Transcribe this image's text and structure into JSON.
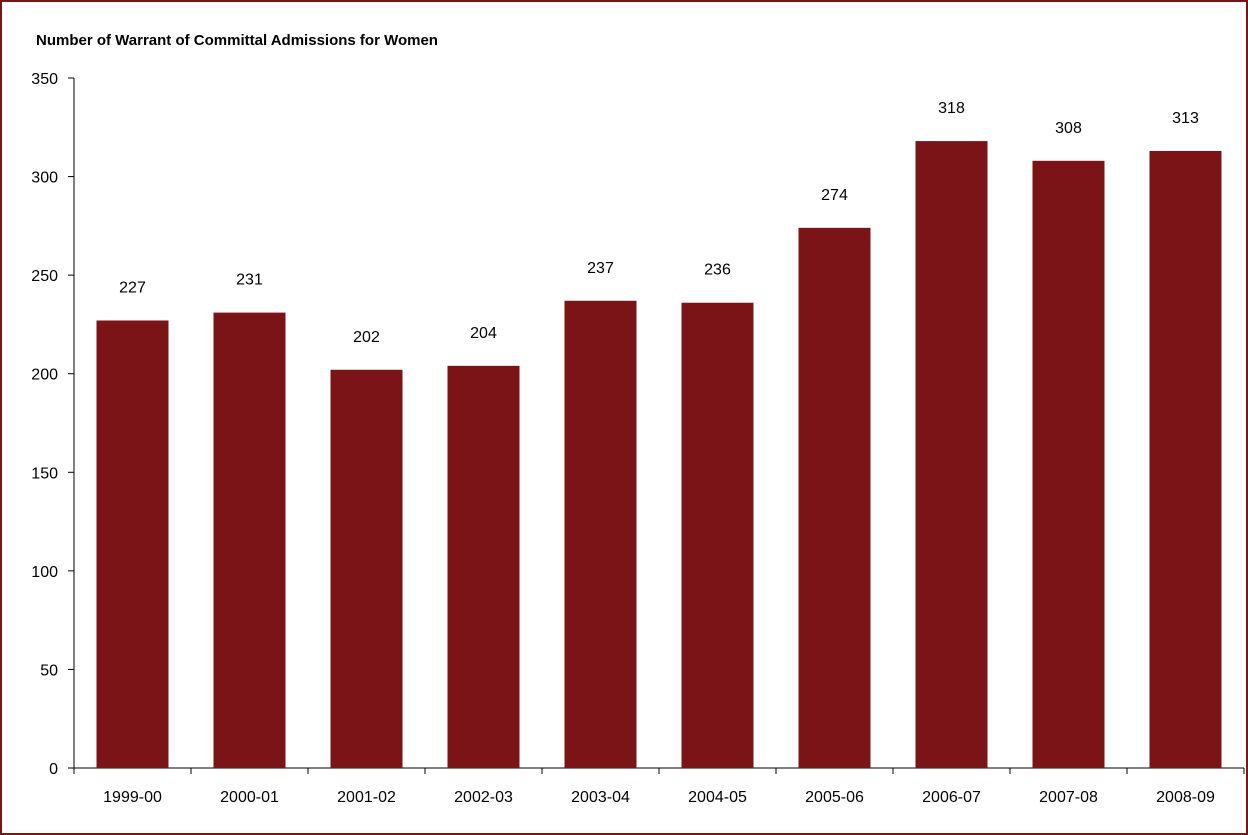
{
  "chart_data": {
    "type": "bar",
    "title": "Number of Warrant of Committal Admissions for Women",
    "xlabel": "",
    "ylabel": "",
    "categories": [
      "1999-00",
      "2000-01",
      "2001-02",
      "2002-03",
      "2003-04",
      "2004-05",
      "2005-06",
      "2006-07",
      "2007-08",
      "2008-09"
    ],
    "values": [
      227,
      231,
      202,
      204,
      237,
      236,
      274,
      318,
      308,
      313
    ],
    "data_labels": [
      "227",
      "231",
      "202",
      "204",
      "237",
      "236",
      "274",
      "318",
      "308",
      "313"
    ],
    "y_ticks": [
      0,
      50,
      100,
      150,
      200,
      250,
      300,
      350
    ],
    "ylim": [
      0,
      350
    ],
    "grid": false,
    "legend": "none",
    "colors": {
      "bar": "#7b1416",
      "frame": "#7a1416",
      "axis": "#000000"
    }
  }
}
